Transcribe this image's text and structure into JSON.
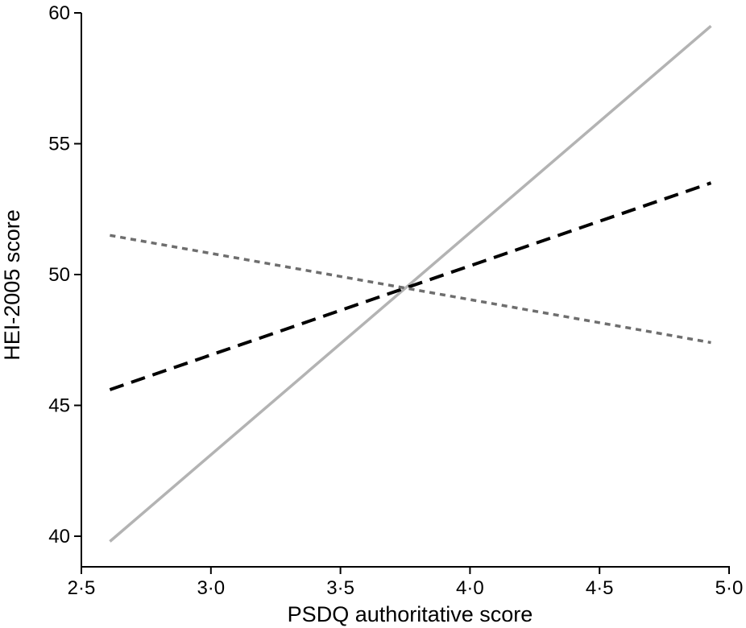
{
  "chart_data": {
    "type": "line",
    "title": "",
    "xlabel": "PSDQ authoritative score",
    "ylabel": "HEI-2005 score",
    "xlim": [
      2.5,
      5.0
    ],
    "ylim": [
      38.5,
      60
    ],
    "x_ticks": [
      {
        "value": 2.5,
        "label": "2·5"
      },
      {
        "value": 3.0,
        "label": "3·0"
      },
      {
        "value": 3.5,
        "label": "3·5"
      },
      {
        "value": 4.0,
        "label": "4·0"
      },
      {
        "value": 4.5,
        "label": "4·5"
      },
      {
        "value": 5.0,
        "label": "5·0"
      }
    ],
    "y_ticks": [
      {
        "value": 40,
        "label": "40"
      },
      {
        "value": 45,
        "label": "45"
      },
      {
        "value": 50,
        "label": "50"
      },
      {
        "value": 55,
        "label": "55"
      },
      {
        "value": 60,
        "label": "60"
      }
    ],
    "grid": false,
    "legend": "none",
    "series": [
      {
        "style": "solid",
        "color": "#b3b3b3",
        "x": [
          2.61,
          4.93
        ],
        "y": [
          39.8,
          59.5
        ]
      },
      {
        "style": "dashed",
        "color": "#000000",
        "x": [
          2.61,
          4.93
        ],
        "y": [
          45.6,
          53.5
        ]
      },
      {
        "style": "dotted",
        "color": "#6e6e6e",
        "x": [
          2.61,
          4.93
        ],
        "y": [
          51.5,
          47.4
        ]
      }
    ]
  }
}
